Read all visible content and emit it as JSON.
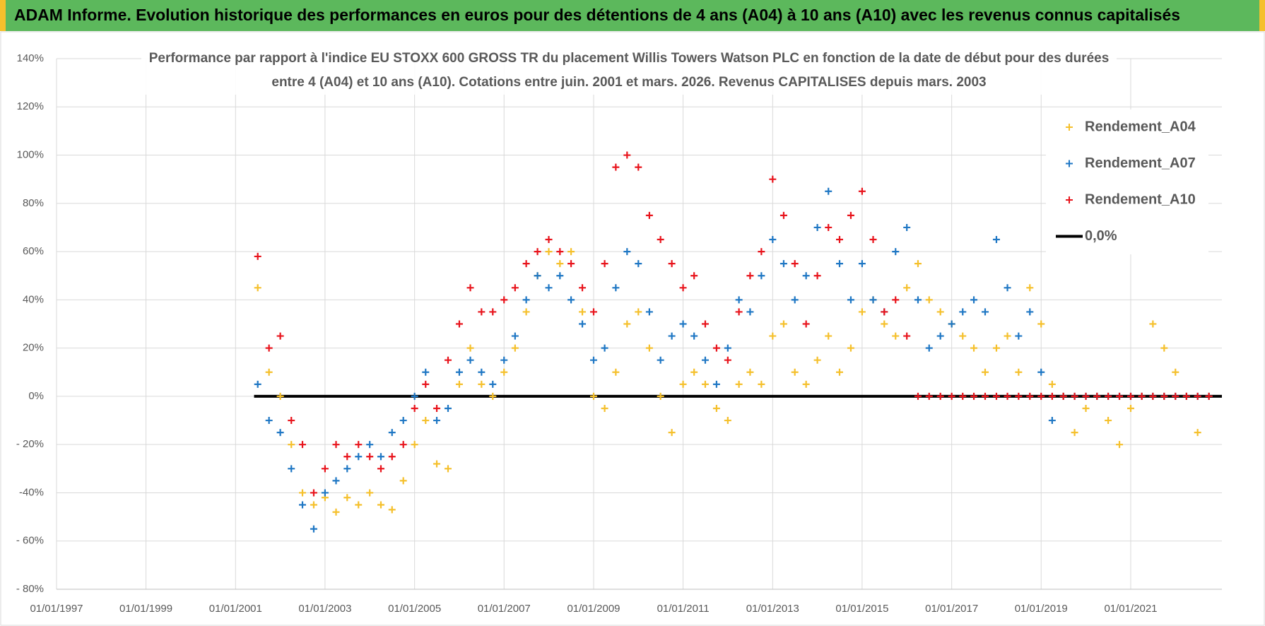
{
  "header": {
    "title": "ADAM Informe. Evolution historique des performances en euros pour des détentions de 4 ans (A04) à 10 ans (A10) avec les revenus connus capitalisés"
  },
  "chart_data": {
    "type": "scatter",
    "title": "Performance par rapport à l'indice EU STOXX 600 GROSS TR  du placement Willis Towers Watson PLC en fonction de la date de début pour des durées\nentre 4 (A04) et 10 ans (A10). Cotations entre juin. 2001 et mars. 2026. Revenus CAPITALISES depuis mars. 2003",
    "x": [
      "2001-07-01",
      "2001-10-01",
      "2002-01-01",
      "2002-04-01",
      "2002-07-01",
      "2002-10-01",
      "2003-01-01",
      "2003-04-01",
      "2003-07-01",
      "2003-10-01",
      "2004-01-01",
      "2004-04-01",
      "2004-07-01",
      "2004-10-01",
      "2005-01-01",
      "2005-04-01",
      "2005-07-01",
      "2005-10-01",
      "2006-01-01",
      "2006-04-01",
      "2006-07-01",
      "2006-10-01",
      "2007-01-01",
      "2007-04-01",
      "2007-07-01",
      "2007-10-01",
      "2008-01-01",
      "2008-04-01",
      "2008-07-01",
      "2008-10-01",
      "2009-01-01",
      "2009-04-01",
      "2009-07-01",
      "2009-10-01",
      "2010-01-01",
      "2010-04-01",
      "2010-07-01",
      "2010-10-01",
      "2011-01-01",
      "2011-04-01",
      "2011-07-01",
      "2011-10-01",
      "2012-01-01",
      "2012-04-01",
      "2012-07-01",
      "2012-10-01",
      "2013-01-01",
      "2013-04-01",
      "2013-07-01",
      "2013-10-01",
      "2014-01-01",
      "2014-04-01",
      "2014-07-01",
      "2014-10-01",
      "2015-01-01",
      "2015-04-01",
      "2015-07-01",
      "2015-10-01",
      "2016-01-01",
      "2016-04-01",
      "2016-07-01",
      "2016-10-01",
      "2017-01-01",
      "2017-04-01",
      "2017-07-01",
      "2017-10-01",
      "2018-01-01",
      "2018-04-01",
      "2018-07-01",
      "2018-10-01",
      "2019-01-01",
      "2019-04-01",
      "2019-07-01",
      "2019-10-01",
      "2020-01-01",
      "2020-04-01",
      "2020-07-01",
      "2020-10-01",
      "2021-01-01",
      "2021-04-01",
      "2021-07-01",
      "2021-10-01",
      "2022-01-01",
      "2022-04-01",
      "2022-07-01",
      "2022-10-01"
    ],
    "series": [
      {
        "name": "Rendement_A04",
        "color": "#f5c02c",
        "values": [
          45,
          10,
          0,
          -20,
          -40,
          -45,
          -42,
          -48,
          -42,
          -45,
          -40,
          -45,
          -47,
          -35,
          -20,
          -10,
          -28,
          -30,
          5,
          20,
          5,
          0,
          10,
          20,
          35,
          50,
          60,
          55,
          60,
          35,
          0,
          -5,
          10,
          30,
          35,
          20,
          0,
          -15,
          5,
          10,
          5,
          -5,
          -10,
          5,
          10,
          5,
          25,
          30,
          10,
          5,
          15,
          25,
          10,
          20,
          35,
          40,
          30,
          25,
          45,
          55,
          40,
          35,
          30,
          25,
          20,
          10,
          20,
          25,
          10,
          45,
          30,
          5,
          0,
          -15,
          -5,
          0,
          -10,
          -20,
          -5,
          0,
          30,
          20,
          10,
          0,
          -15,
          0
        ]
      },
      {
        "name": "Rendement_A07",
        "color": "#1f77c4",
        "values": [
          5,
          -10,
          -15,
          -30,
          -45,
          -55,
          -40,
          -35,
          -30,
          -25,
          -20,
          -25,
          -15,
          -10,
          0,
          10,
          -10,
          -5,
          10,
          15,
          10,
          5,
          15,
          25,
          40,
          50,
          45,
          50,
          40,
          30,
          15,
          20,
          45,
          60,
          55,
          35,
          15,
          25,
          30,
          25,
          15,
          5,
          20,
          40,
          35,
          50,
          65,
          55,
          40,
          50,
          70,
          85,
          55,
          40,
          55,
          40,
          35,
          60,
          70,
          40,
          20,
          25,
          30,
          35,
          40,
          35,
          65,
          45,
          25,
          35,
          10,
          -10,
          0,
          0,
          0,
          0,
          0,
          0,
          0,
          0,
          0,
          0,
          0,
          0,
          0,
          0
        ]
      },
      {
        "name": "Rendement_A10",
        "color": "#e8141c",
        "values": [
          58,
          20,
          25,
          -10,
          -20,
          -40,
          -30,
          -20,
          -25,
          -20,
          -25,
          -30,
          -25,
          -20,
          -5,
          5,
          -5,
          15,
          30,
          45,
          35,
          35,
          40,
          45,
          55,
          60,
          65,
          60,
          55,
          45,
          35,
          55,
          95,
          100,
          95,
          75,
          65,
          55,
          45,
          50,
          30,
          20,
          15,
          35,
          50,
          60,
          90,
          75,
          55,
          30,
          50,
          70,
          65,
          75,
          85,
          65,
          35,
          40,
          25,
          0,
          0,
          0,
          0,
          0,
          0,
          0,
          0,
          0,
          0,
          0,
          0,
          0,
          0,
          0,
          0,
          0,
          0,
          0,
          0,
          0,
          0,
          0,
          0,
          0,
          0,
          0
        ]
      },
      {
        "name": "0,0%",
        "type": "line",
        "color": "#000000",
        "x": [
          "2001-06-01",
          "2023-01-15"
        ],
        "values": [
          0,
          0
        ]
      }
    ],
    "xlim": [
      "1997-01-01",
      "2023-01-15"
    ],
    "xticks": [
      {
        "value": "1997-01-01",
        "label": "01/01/1997"
      },
      {
        "value": "1999-01-01",
        "label": "01/01/1999"
      },
      {
        "value": "2001-01-01",
        "label": "01/01/2001"
      },
      {
        "value": "2003-01-01",
        "label": "01/01/2003"
      },
      {
        "value": "2005-01-01",
        "label": "01/01/2005"
      },
      {
        "value": "2007-01-01",
        "label": "01/01/2007"
      },
      {
        "value": "2009-01-01",
        "label": "01/01/2009"
      },
      {
        "value": "2011-01-01",
        "label": "01/01/2011"
      },
      {
        "value": "2013-01-01",
        "label": "01/01/2013"
      },
      {
        "value": "2015-01-01",
        "label": "01/01/2015"
      },
      {
        "value": "2017-01-01",
        "label": "01/01/2017"
      },
      {
        "value": "2019-01-01",
        "label": "01/01/2019"
      },
      {
        "value": "2021-01-01",
        "label": "01/01/2021"
      }
    ],
    "ylim": [
      -80,
      140
    ],
    "yticks": [
      {
        "value": -80,
        "label": "- 80%"
      },
      {
        "value": -60,
        "label": "- 60%"
      },
      {
        "value": -40,
        "label": "-40%"
      },
      {
        "value": -20,
        "label": "- 20%"
      },
      {
        "value": 0,
        "label": "0%"
      },
      {
        "value": 20,
        "label": "20%"
      },
      {
        "value": 40,
        "label": "40%"
      },
      {
        "value": 60,
        "label": "60%"
      },
      {
        "value": 80,
        "label": "80%"
      },
      {
        "value": 100,
        "label": "100%"
      },
      {
        "value": 120,
        "label": "120%"
      },
      {
        "value": 140,
        "label": "140%"
      }
    ],
    "grid": true,
    "legend": "upper right"
  }
}
